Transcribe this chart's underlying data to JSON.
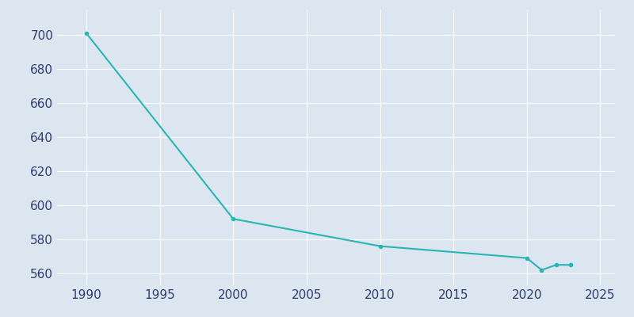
{
  "years": [
    1990,
    2000,
    2010,
    2020,
    2021,
    2022,
    2023
  ],
  "population": [
    701,
    592,
    576,
    569,
    562,
    565,
    565
  ],
  "line_color": "#2ab5b5",
  "marker": "o",
  "marker_size": 3,
  "line_width": 1.5,
  "axes_facecolor": "#dce6f0",
  "figure_facecolor": "#dce6f0",
  "grid_color": "#ffffff",
  "tick_label_color": "#2e3c6e",
  "xlim": [
    1988,
    2026
  ],
  "ylim": [
    553,
    715
  ],
  "xticks": [
    1990,
    1995,
    2000,
    2005,
    2010,
    2015,
    2020,
    2025
  ],
  "yticks": [
    560,
    580,
    600,
    620,
    640,
    660,
    680,
    700
  ],
  "tick_fontsize": 11
}
